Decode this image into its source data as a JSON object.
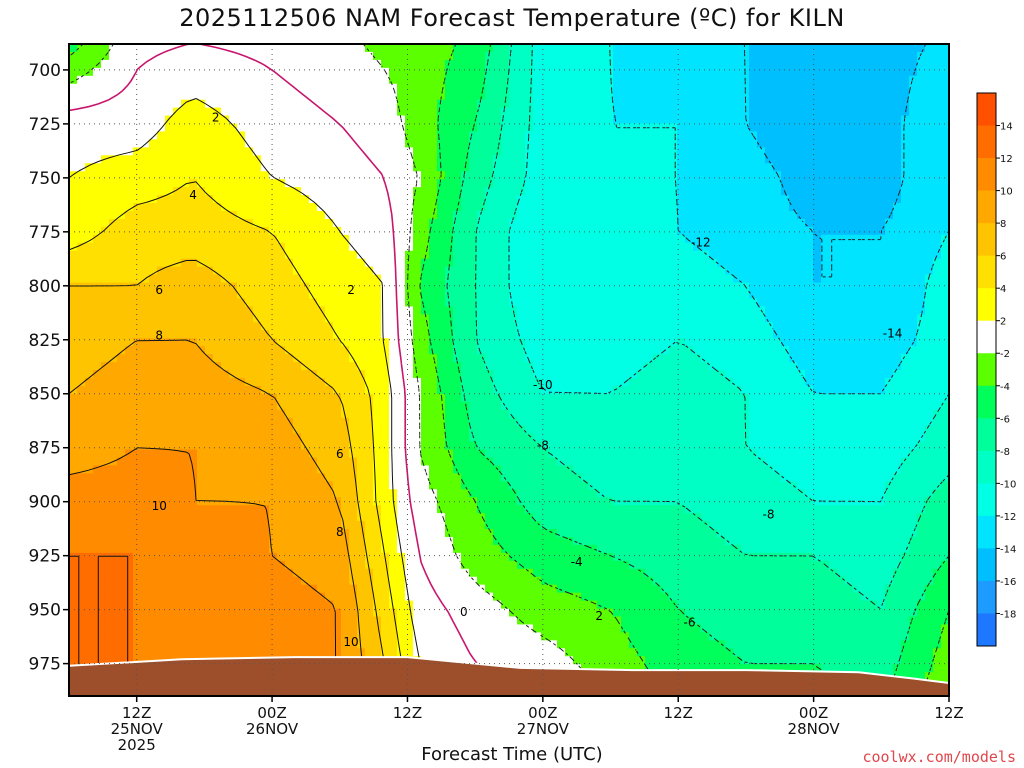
{
  "title": "2025112506 NAM Forecast Temperature (ºC) for KILN",
  "credit": "coolwx.com/models",
  "chart_data": {
    "type": "heatmap",
    "title": "2025112506 NAM Forecast Temperature (ºC) for KILN",
    "xlabel": "Forecast Time (UTC)",
    "ylabel": "",
    "x_unit_note": "forecast hour from 2025-11-25 06Z",
    "xlim": [
      0,
      78
    ],
    "ylim": [
      688,
      990
    ],
    "y_ticks": [
      700,
      725,
      750,
      775,
      800,
      825,
      850,
      875,
      900,
      925,
      950,
      975
    ],
    "x_ticks": [
      {
        "hour": 6,
        "line1": "12Z",
        "line2": "25NOV",
        "line3": "2025"
      },
      {
        "hour": 18,
        "line1": "00Z",
        "line2": "26NOV",
        "line3": ""
      },
      {
        "hour": 30,
        "line1": "12Z",
        "line2": "",
        "line3": ""
      },
      {
        "hour": 42,
        "line1": "00Z",
        "line2": "27NOV",
        "line3": ""
      },
      {
        "hour": 54,
        "line1": "12Z",
        "line2": "",
        "line3": ""
      },
      {
        "hour": 66,
        "line1": "00Z",
        "line2": "28NOV",
        "line3": ""
      },
      {
        "hour": 78,
        "line1": "12Z",
        "line2": "",
        "line3": ""
      }
    ],
    "grid": true,
    "colorbar": {
      "levels": [
        -20,
        -18,
        -16,
        -14,
        -12,
        -10,
        -8,
        -6,
        -4,
        -2,
        2,
        4,
        6,
        8,
        10,
        12,
        14,
        16
      ],
      "labels": [
        "-18",
        "-16",
        "-14",
        "-12",
        "-10",
        "-8",
        "-6",
        "-4",
        "-2",
        "2",
        "4",
        "6",
        "8",
        "10",
        "12",
        "14"
      ],
      "colors": [
        "#1e78ff",
        "#1e9bff",
        "#00bfff",
        "#00e4ff",
        "#00ffe4",
        "#00ffc4",
        "#00ff9a",
        "#00ff5a",
        "#5cff00",
        "#ffffff",
        "#ffff00",
        "#ffe000",
        "#ffc400",
        "#ffa800",
        "#ff8c00",
        "#ff6c00",
        "#ff5000"
      ]
    },
    "surface_pressure": [
      {
        "x": 0,
        "p": 976
      },
      {
        "x": 10,
        "p": 973
      },
      {
        "x": 20,
        "p": 972
      },
      {
        "x": 30,
        "p": 972
      },
      {
        "x": 40,
        "p": 977
      },
      {
        "x": 50,
        "p": 978
      },
      {
        "x": 60,
        "p": 978
      },
      {
        "x": 70,
        "p": 979
      },
      {
        "x": 75,
        "p": 982
      },
      {
        "x": 78,
        "p": 984
      }
    ],
    "temperature_columns": [
      {
        "x": 0,
        "p": [
          700,
          725,
          750,
          775,
          800,
          825,
          850,
          875,
          900,
          925,
          950,
          975
        ],
        "t": [
          -3,
          1,
          2,
          3,
          6,
          7,
          8,
          9,
          11,
          12,
          12,
          12
        ]
      },
      {
        "x": 6,
        "p": [
          700,
          725,
          750,
          775,
          800,
          825,
          850,
          875,
          900,
          925,
          950,
          975
        ],
        "t": [
          0,
          1,
          3,
          5,
          6,
          8,
          9,
          10,
          11,
          12,
          12,
          12
        ]
      },
      {
        "x": 11,
        "p": [
          700,
          725,
          750,
          775,
          800,
          825,
          850,
          875,
          900,
          925,
          950,
          975
        ],
        "t": [
          1,
          3,
          4,
          5,
          7,
          8,
          9,
          10,
          10,
          11,
          11,
          11
        ]
      },
      {
        "x": 18,
        "p": [
          700,
          725,
          750,
          775,
          800,
          825,
          850,
          875,
          900,
          925,
          950,
          975
        ],
        "t": [
          0,
          1,
          2,
          4,
          5,
          6,
          8,
          9,
          10,
          10,
          11,
          11
        ]
      },
      {
        "x": 24,
        "p": [
          700,
          725,
          750,
          775,
          800,
          825,
          850,
          875,
          900,
          925,
          950,
          975
        ],
        "t": [
          -1,
          0,
          1,
          2,
          3,
          4,
          6,
          7,
          8,
          9,
          10,
          10
        ]
      },
      {
        "x": 28,
        "p": [
          700,
          725,
          750,
          775,
          800,
          825,
          850,
          875,
          900,
          925,
          950,
          975
        ],
        "t": [
          -2,
          -1,
          0,
          1,
          2,
          2,
          3,
          3,
          3,
          4,
          5,
          6
        ]
      },
      {
        "x": 31,
        "p": [
          700,
          725,
          750,
          775,
          800,
          825,
          850,
          875,
          900,
          925,
          950,
          975
        ],
        "t": [
          -3,
          -3,
          -2,
          -3,
          -4,
          -3,
          -2,
          -2,
          -1,
          0,
          1,
          2
        ]
      },
      {
        "x": 36,
        "p": [
          700,
          725,
          750,
          775,
          800,
          825,
          850,
          875,
          900,
          925,
          950,
          975
        ],
        "t": [
          -5,
          -6,
          -7,
          -8,
          -8,
          -8,
          -7,
          -6,
          -4,
          -3,
          -1,
          0
        ]
      },
      {
        "x": 42,
        "p": [
          700,
          725,
          750,
          775,
          800,
          825,
          850,
          875,
          900,
          925,
          950,
          975
        ],
        "t": [
          -11,
          -11,
          -11,
          -12,
          -12,
          -11,
          -10,
          -8,
          -7,
          -5,
          -3,
          -1
        ]
      },
      {
        "x": 48,
        "p": [
          700,
          725,
          750,
          775,
          800,
          825,
          850,
          875,
          900,
          925,
          950,
          975
        ],
        "t": [
          -12,
          -12,
          -12,
          -11,
          -11,
          -11,
          -10,
          -9,
          -8,
          -6,
          -4,
          -3
        ]
      },
      {
        "x": 54,
        "p": [
          700,
          725,
          750,
          775,
          800,
          825,
          850,
          875,
          900,
          925,
          950,
          975
        ],
        "t": [
          -13,
          -12,
          -12,
          -12,
          -11,
          -10,
          -9,
          -9,
          -8,
          -7,
          -6,
          -5
        ]
      },
      {
        "x": 60,
        "p": [
          700,
          725,
          750,
          775,
          800,
          825,
          850,
          875,
          900,
          925,
          950,
          975
        ],
        "t": [
          -14,
          -14,
          -13,
          -13,
          -12,
          -11,
          -10,
          -10,
          -9,
          -8,
          -7,
          -6
        ]
      },
      {
        "x": 66,
        "p": [
          700,
          725,
          750,
          775,
          800,
          825,
          850,
          875,
          900,
          925,
          950,
          975
        ],
        "t": [
          -16,
          -16,
          -15,
          -14,
          -14,
          -13,
          -12,
          -11,
          -10,
          -8,
          -7,
          -6
        ]
      },
      {
        "x": 72,
        "p": [
          700,
          725,
          750,
          775,
          800,
          825,
          850,
          875,
          900,
          925,
          950,
          975
        ],
        "t": [
          -15,
          -15,
          -15,
          -14,
          -14,
          -13,
          -12,
          -11,
          -10,
          -9,
          -8,
          -7
        ]
      },
      {
        "x": 78,
        "p": [
          700,
          725,
          750,
          775,
          800,
          825,
          850,
          875,
          900,
          925,
          950,
          975
        ],
        "t": [
          -13,
          -12,
          -12,
          -12,
          -11,
          -11,
          -10,
          -9,
          -7,
          -6,
          -4,
          -3
        ]
      }
    ],
    "contour_labels": [
      {
        "x": 13,
        "p": 722,
        "text": "2"
      },
      {
        "x": 11,
        "p": 758,
        "text": "4"
      },
      {
        "x": 8,
        "p": 802,
        "text": "6"
      },
      {
        "x": 8,
        "p": 823,
        "text": "8"
      },
      {
        "x": 8,
        "p": 902,
        "text": "10"
      },
      {
        "x": 25,
        "p": 802,
        "text": "2"
      },
      {
        "x": 24,
        "p": 878,
        "text": "6"
      },
      {
        "x": 24,
        "p": 914,
        "text": "8"
      },
      {
        "x": 25,
        "p": 965,
        "text": "10"
      },
      {
        "x": 35,
        "p": 951,
        "text": "0"
      },
      {
        "x": 47,
        "p": 953,
        "text": "2"
      },
      {
        "x": 45,
        "p": 928,
        "text": "-4"
      },
      {
        "x": 42,
        "p": 874,
        "text": "-8"
      },
      {
        "x": 42,
        "p": 846,
        "text": "-10"
      },
      {
        "x": 56,
        "p": 780,
        "text": "-12"
      },
      {
        "x": 55,
        "p": 956,
        "text": "-6"
      },
      {
        "x": 62,
        "p": 906,
        "text": "-8"
      },
      {
        "x": 73,
        "p": 822,
        "text": "-14"
      }
    ]
  }
}
